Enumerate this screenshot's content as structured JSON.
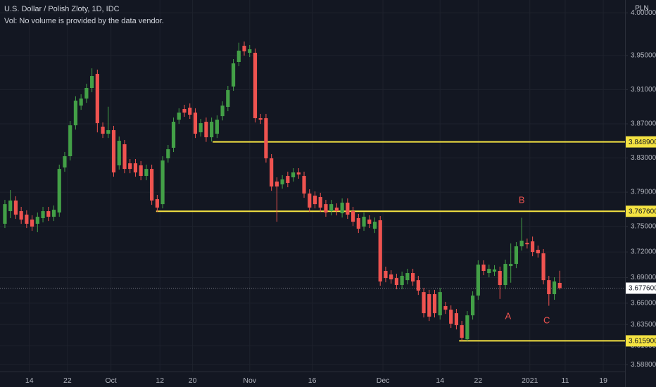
{
  "chart_data": {
    "type": "candlestick",
    "title": "U.S. Dollar / Polish Zloty, 1D, IDC",
    "subtitle": "Vol: No volume is provided by the data vendor.",
    "y_axis_label": "PLN",
    "up_color": "#43a047",
    "down_color": "#ef5350",
    "x": [
      0,
      1,
      2,
      3,
      4,
      5,
      6,
      7,
      8,
      9,
      10,
      11,
      12,
      13,
      14,
      15,
      16,
      17,
      18,
      19,
      20,
      21,
      22,
      23,
      24,
      25,
      26,
      27,
      28,
      29,
      30,
      31,
      32,
      33,
      34,
      35,
      36,
      37,
      38,
      39,
      40,
      41,
      42,
      43,
      44,
      45,
      46,
      47,
      48,
      49,
      50,
      51,
      52,
      53,
      54,
      55,
      56,
      57,
      58,
      59,
      60,
      61,
      62,
      63,
      64,
      65,
      66,
      67,
      68,
      69,
      70,
      71,
      72,
      73,
      74,
      75,
      76,
      77,
      78,
      79,
      80,
      81,
      82,
      83,
      84,
      85,
      86,
      87,
      88,
      89,
      90,
      91,
      92,
      93,
      94,
      95,
      96,
      97,
      98,
      99,
      100,
      101,
      102
    ],
    "open": [
      3.753,
      3.7678,
      3.7802,
      3.7678,
      3.7637,
      3.7579,
      3.753,
      3.7596,
      3.7678,
      3.7612,
      3.7662,
      3.8189,
      3.8321,
      3.8683,
      3.8914,
      3.8996,
      3.912,
      3.9285,
      3.8667,
      3.8584,
      3.8626,
      3.8214,
      3.8461,
      3.8238,
      3.8238,
      3.8214,
      3.809,
      3.8172,
      3.7818,
      3.776,
      3.8296,
      3.842,
      3.8749,
      3.8873,
      3.8889,
      3.8832,
      3.8601,
      3.8724,
      3.8543,
      3.8584,
      3.879,
      3.8898,
      3.9137,
      3.9425,
      3.9614,
      3.9532,
      3.9532,
      3.8766,
      3.8766,
      3.8296,
      3.8024,
      3.7991,
      3.809,
      3.8074,
      3.8131,
      3.809,
      3.7884,
      3.7859,
      3.7843,
      3.776,
      3.7678,
      3.7719,
      3.7653,
      3.7777,
      3.7678,
      3.7596,
      3.7497,
      3.7579,
      3.7472,
      3.7571,
      3.6978,
      3.6936,
      3.6895,
      3.6813,
      3.687,
      3.6953,
      3.687,
      3.673,
      3.6706,
      3.6706,
      3.6458,
      3.6566,
      3.6524,
      3.6483,
      3.6343,
      3.6178,
      3.6458,
      3.6689,
      3.7052,
      3.6953,
      3.697,
      3.6978,
      3.6813,
      3.7035,
      3.706,
      3.7266,
      3.7307,
      3.7324,
      3.7225,
      3.7184,
      3.687,
      3.6706,
      3.6838
    ],
    "high": [
      3.781,
      3.7925,
      3.7852,
      3.7728,
      3.7687,
      3.7629,
      3.7662,
      3.7728,
      3.7728,
      3.7744,
      3.8222,
      3.8371,
      3.8733,
      3.9022,
      3.9046,
      3.917,
      3.935,
      3.9335,
      3.8717,
      3.89,
      3.8676,
      3.8552,
      3.8511,
      3.8288,
      3.8288,
      3.8264,
      3.8222,
      3.8222,
      3.7868,
      3.8321,
      3.8453,
      3.8774,
      3.8882,
      3.8923,
      3.8939,
      3.8882,
      3.8758,
      3.8774,
      3.8774,
      3.8799,
      3.8964,
      3.9145,
      3.9458,
      3.965,
      3.9664,
      3.9623,
      3.9582,
      3.8816,
      3.8816,
      3.8346,
      3.8074,
      3.8099,
      3.814,
      3.8181,
      3.8181,
      3.814,
      3.7934,
      3.7909,
      3.7893,
      3.781,
      3.781,
      3.7769,
      3.7827,
      3.7827,
      3.7728,
      3.7646,
      3.7662,
      3.7629,
      3.7604,
      3.7621,
      3.7028,
      3.6986,
      3.6945,
      3.697,
      3.7003,
      3.7003,
      3.692,
      3.678,
      3.6756,
      3.6756,
      3.678,
      3.6616,
      3.6574,
      3.6533,
      3.6393,
      3.6508,
      3.6739,
      3.7102,
      3.7102,
      3.7052,
      3.7045,
      3.7028,
      3.711,
      3.73,
      3.7316,
      3.76,
      3.7357,
      3.738,
      3.7275,
      3.7234,
      3.692,
      3.6904,
      3.698
    ],
    "low": [
      3.748,
      3.7596,
      3.7587,
      3.7529,
      3.748,
      3.7447,
      3.7431,
      3.7546,
      3.7562,
      3.7562,
      3.7612,
      3.8139,
      3.8271,
      3.8633,
      3.8864,
      3.8946,
      3.907,
      3.86,
      3.8534,
      3.8534,
      3.8081,
      3.8164,
      3.8122,
      3.8122,
      3.8081,
      3.804,
      3.804,
      3.7752,
      3.7669,
      3.771,
      3.8246,
      3.837,
      3.8699,
      3.8782,
      3.8757,
      3.8534,
      3.8551,
      3.8489,
      3.8493,
      3.8534,
      3.874,
      3.8848,
      3.9087,
      3.9375,
      3.9499,
      3.9482,
      3.8716,
      3.8699,
      3.8246,
      3.7916,
      3.7554,
      3.7941,
      3.7958,
      3.8024,
      3.8057,
      3.7834,
      3.7669,
      3.771,
      3.7669,
      3.7612,
      3.7628,
      3.7628,
      3.7603,
      3.7587,
      3.7504,
      3.7422,
      3.7447,
      3.748,
      3.7422,
      3.6804,
      3.6845,
      3.6829,
      3.6763,
      3.6763,
      3.682,
      3.6804,
      3.6697,
      3.6433,
      3.6392,
      3.6433,
      3.6408,
      3.6474,
      3.631,
      3.6293,
      3.6159,
      3.6159,
      3.6408,
      3.6639,
      3.6928,
      3.6903,
      3.692,
      3.665,
      3.6763,
      3.684,
      3.701,
      3.7216,
      3.724,
      3.715,
      3.7134,
      3.682,
      3.657,
      3.664,
      3.676
    ],
    "close": [
      3.776,
      3.7802,
      3.7637,
      3.7579,
      3.753,
      3.7497,
      3.7612,
      3.7678,
      3.7612,
      3.7694,
      3.8172,
      3.8321,
      3.8683,
      3.8972,
      3.8996,
      3.912,
      3.926,
      3.8708,
      3.8584,
      3.8626,
      3.8131,
      3.8502,
      3.8172,
      3.8172,
      3.8131,
      3.809,
      3.8172,
      3.7802,
      3.7719,
      3.8271,
      3.8403,
      3.8724,
      3.8832,
      3.8832,
      3.8807,
      3.8584,
      3.8708,
      3.8543,
      3.8724,
      3.8749,
      3.8914,
      3.9095,
      3.9408,
      3.9557,
      3.9549,
      3.9573,
      3.8766,
      3.8749,
      3.8296,
      3.7966,
      3.7966,
      3.8049,
      3.8008,
      3.8131,
      3.8107,
      3.7884,
      3.7719,
      3.776,
      3.7719,
      3.7662,
      3.776,
      3.7678,
      3.7777,
      3.7637,
      3.7554,
      3.7472,
      3.7612,
      3.753,
      3.7554,
      3.6854,
      3.6895,
      3.6879,
      3.6813,
      3.692,
      3.6953,
      3.6854,
      3.6747,
      3.6483,
      3.6442,
      3.6483,
      3.673,
      3.6524,
      3.636,
      3.6343,
      3.6195,
      3.6458,
      3.6689,
      3.7052,
      3.6978,
      3.7002,
      3.6995,
      3.6813,
      3.706,
      3.706,
      3.7266,
      3.7332,
      3.729,
      3.72,
      3.7184,
      3.687,
      3.6706,
      3.6854,
      3.6776
    ],
    "xlim": [
      -0.9,
      114
    ],
    "xticks": [
      {
        "value": 4.5,
        "label": "14"
      },
      {
        "value": 11.5,
        "label": "22"
      },
      {
        "value": 19.5,
        "label": "Oct"
      },
      {
        "value": 28.5,
        "label": "12"
      },
      {
        "value": 34.5,
        "label": "20"
      },
      {
        "value": 45,
        "label": "Nov"
      },
      {
        "value": 56.5,
        "label": "16"
      },
      {
        "value": 69.5,
        "label": "Dec"
      },
      {
        "value": 80,
        "label": "14"
      },
      {
        "value": 87,
        "label": "22"
      },
      {
        "value": 96.5,
        "label": "2021"
      },
      {
        "value": 103,
        "label": "11"
      },
      {
        "value": 110,
        "label": "19"
      }
    ],
    "ylim": [
      3.58,
      4.015
    ],
    "yticks": [
      {
        "value": 3.588,
        "label": "3.588000"
      },
      {
        "value": 3.61,
        "label": "3.610000"
      },
      {
        "value": 3.635,
        "label": "3.635000"
      },
      {
        "value": 3.66,
        "label": "3.660000"
      },
      {
        "value": 3.69,
        "label": "3.690000"
      },
      {
        "value": 3.72,
        "label": "3.720000"
      },
      {
        "value": 3.75,
        "label": "3.750000"
      },
      {
        "value": 3.79,
        "label": "3.790000"
      },
      {
        "value": 3.83,
        "label": "3.830000"
      },
      {
        "value": 3.87,
        "label": "3.870000"
      },
      {
        "value": 3.91,
        "label": "3.910000"
      },
      {
        "value": 3.95,
        "label": "3.950000"
      },
      {
        "value": 4.0,
        "label": "4.000000"
      }
    ],
    "grid": true,
    "levels": [
      {
        "value": 3.8489,
        "label": "3.848900",
        "start": 38.2,
        "color": "#f5e342"
      },
      {
        "value": 3.7676,
        "label": "3.767600",
        "start": 27.8,
        "color": "#f5e342"
      },
      {
        "value": 3.6159,
        "label": "3.615900",
        "start": 83.5,
        "color": "#f5e342"
      }
    ],
    "last_price": {
      "value": 3.6776,
      "label": "3.677600"
    },
    "annotations": [
      {
        "text": "A",
        "x": 92.5,
        "y": 3.6442,
        "color": "#ef5350"
      },
      {
        "text": "B",
        "x": 95,
        "y": 3.7802,
        "color": "#ef5350"
      },
      {
        "text": "C",
        "x": 99.6,
        "y": 3.6393,
        "color": "#ef5350"
      }
    ]
  }
}
